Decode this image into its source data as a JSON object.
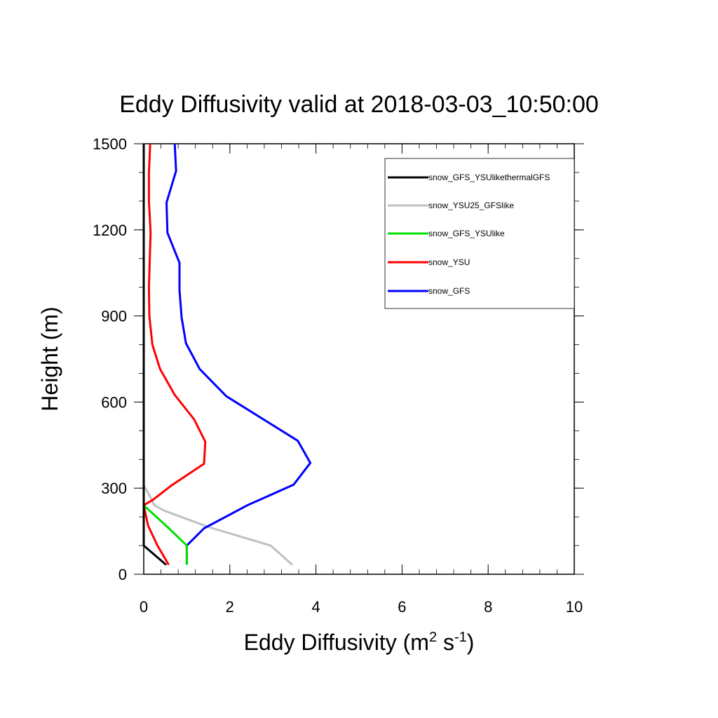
{
  "chart_data": {
    "type": "line",
    "title": "Eddy Diffusivity valid at 2018-03-03_10:50:00",
    "xlabel": "Eddy Diffusivity (m",
    "xlabel_sup1": "2",
    "xlabel_mid": " s",
    "xlabel_sup2": "-1",
    "xlabel_end": ")",
    "ylabel": "Height (m)",
    "xlim": [
      0,
      10
    ],
    "ylim": [
      0,
      1500
    ],
    "xticks": [
      0,
      2,
      4,
      6,
      8,
      10
    ],
    "yticks": [
      0,
      300,
      600,
      900,
      1200,
      1500
    ],
    "xtick_labels": [
      "0",
      "2",
      "4",
      "6",
      "8",
      "10"
    ],
    "ytick_labels": [
      "0",
      "300",
      "600",
      "900",
      "1200",
      "1500"
    ],
    "x_minor_step": 0.4,
    "y_minor_step": 100,
    "grid": false,
    "legend_position": "top-right",
    "series": [
      {
        "name": "snow_GFS_YSUlikethermalGFS",
        "color": "#000000",
        "x": [
          0.52,
          0.0,
          0.0,
          0.0
        ],
        "y": [
          33,
          100,
          240,
          1500
        ]
      },
      {
        "name": "snow_YSU25_GFSlike",
        "color": "#c0c0c0",
        "x": [
          3.45,
          2.95,
          1.5,
          0.5,
          0.25,
          0.15,
          0.0
        ],
        "y": [
          33,
          100,
          165,
          220,
          240,
          270,
          310
        ]
      },
      {
        "name": "snow_GFS_YSUlike",
        "color": "#00e000",
        "x": [
          1.0,
          1.0,
          0.55,
          0.0
        ],
        "y": [
          33,
          100,
          165,
          240
        ]
      },
      {
        "name": "snow_YSU",
        "color": "#ff0000",
        "x": [
          0.58,
          0.32,
          0.1,
          0.0,
          0.05,
          0.22,
          0.65,
          1.4,
          1.43,
          1.17,
          0.72,
          0.38,
          0.2,
          0.13,
          0.12,
          0.14,
          0.16,
          0.12,
          0.12,
          0.15
        ],
        "y": [
          33,
          100,
          170,
          240,
          245,
          260,
          310,
          385,
          462,
          540,
          625,
          715,
          800,
          900,
          1000,
          1100,
          1190,
          1300,
          1400,
          1500
        ]
      },
      {
        "name": "snow_GFS",
        "color": "#0000ff",
        "x": [
          1.0,
          1.0,
          1.4,
          2.4,
          3.48,
          3.87,
          3.58,
          1.92,
          1.3,
          0.98,
          0.88,
          0.83,
          0.83,
          0.55,
          0.53,
          0.75,
          0.72
        ],
        "y": [
          33,
          100,
          160,
          240,
          312,
          388,
          465,
          620,
          715,
          805,
          895,
          990,
          1085,
          1190,
          1295,
          1405,
          1500
        ]
      }
    ]
  }
}
